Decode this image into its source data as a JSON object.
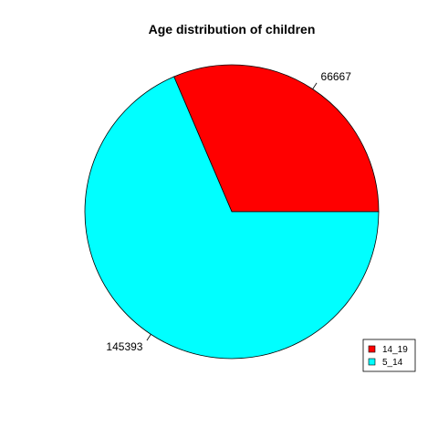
{
  "chart_data": {
    "type": "pie",
    "title": "Age distribution of children",
    "slices": [
      {
        "label": "14_19",
        "value": 66667,
        "color": "#FF0000"
      },
      {
        "label": "5_14",
        "value": 145393,
        "color": "#00FFFF"
      }
    ],
    "legend": {
      "placement": "bottom-right",
      "entries": [
        "14_19",
        "5_14"
      ]
    }
  }
}
